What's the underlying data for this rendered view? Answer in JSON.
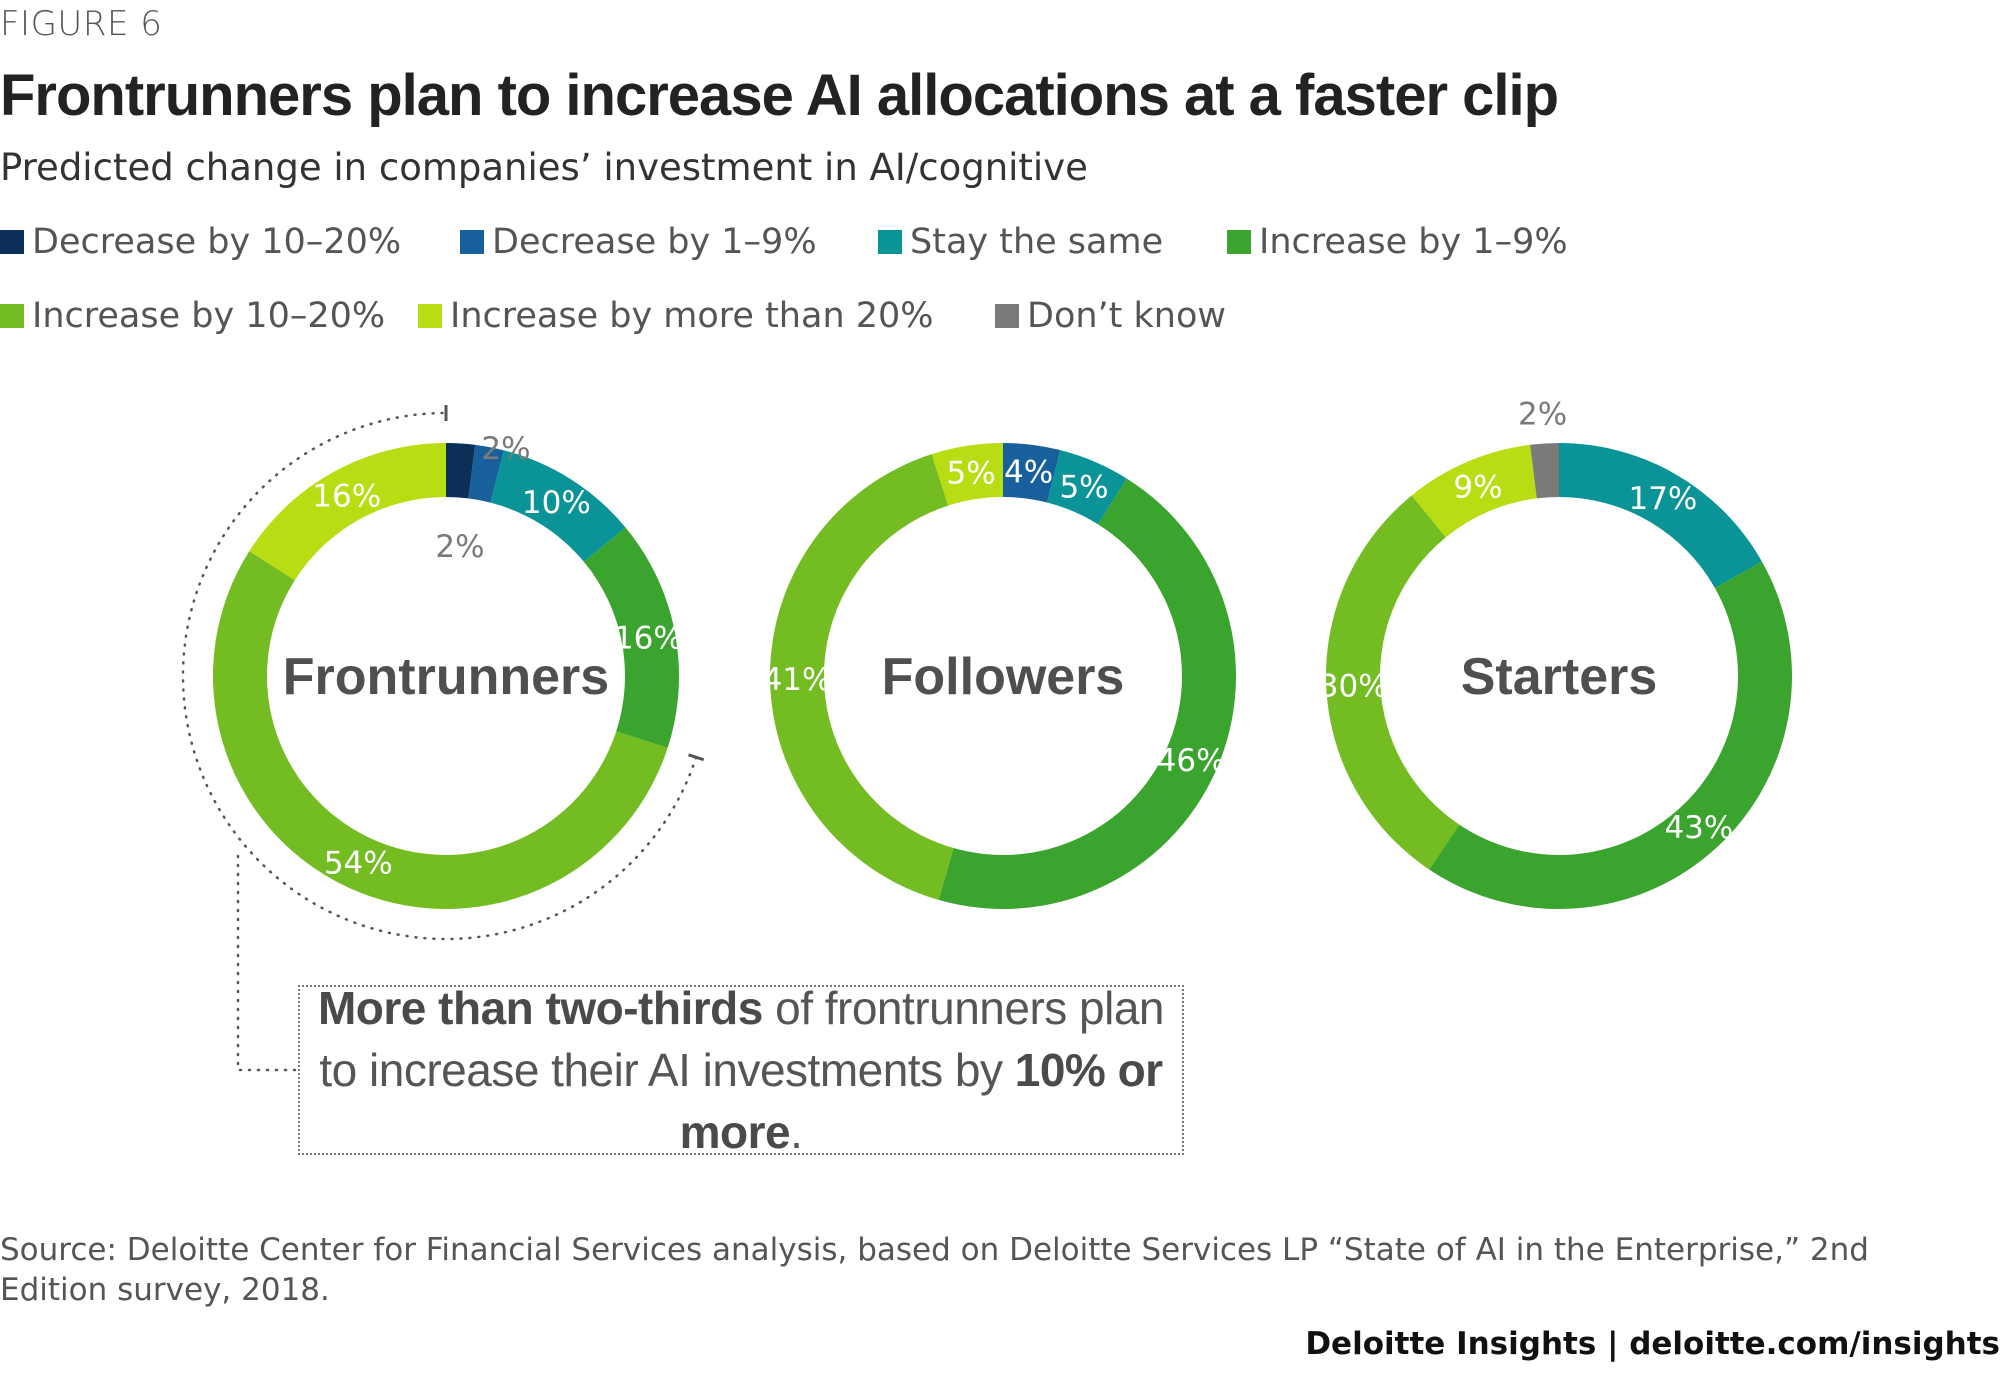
{
  "figure_label": "FIGURE 6",
  "title": "Frontrunners plan to increase AI allocations at a faster clip",
  "subtitle": "Predicted change in companies’ investment in AI/cognitive",
  "legend": [
    {
      "label": "Decrease by 10–20%",
      "color": "#0b2f57"
    },
    {
      "label": "Decrease by 1–9%",
      "color": "#17609b"
    },
    {
      "label": "Stay the same",
      "color": "#0a9497"
    },
    {
      "label": "Increase by 1–9%",
      "color": "#3ba42e"
    },
    {
      "label": "Increase by 10–20%",
      "color": "#73bd22"
    },
    {
      "label": "Increase by more than 20%",
      "color": "#b8dd12"
    },
    {
      "label": "Don’t know",
      "color": "#7a7a7a"
    }
  ],
  "chart_data": {
    "type": "pie",
    "variant": "donut",
    "title": "Frontrunners plan to increase AI allocations at a faster clip",
    "subtitle": "Predicted change in companies’ investment in AI/cognitive",
    "categories": [
      "Decrease by 10–20%",
      "Decrease by 1–9%",
      "Stay the same",
      "Increase by 1–9%",
      "Increase by 10–20%",
      "Increase by more than 20%",
      "Don’t know"
    ],
    "legend_placement": "top",
    "series": [
      {
        "name": "Frontrunners",
        "values": [
          2,
          2,
          10,
          16,
          54,
          16,
          0
        ],
        "labels": [
          "2%",
          "2%",
          "10%",
          "16%",
          "54%",
          "16%",
          ""
        ]
      },
      {
        "name": "Followers",
        "values": [
          0,
          4,
          5,
          46,
          41,
          5,
          0
        ],
        "labels": [
          "",
          "4%",
          "5%",
          "46%",
          "41%",
          "5%",
          ""
        ]
      },
      {
        "name": "Starters",
        "values": [
          0,
          0,
          17,
          43,
          30,
          9,
          2
        ],
        "labels": [
          "",
          "",
          "17%",
          "43%",
          "30%",
          "9%",
          "2%"
        ]
      }
    ]
  },
  "callout": {
    "bold1": "More than two-thirds",
    "text1": " of frontrunners plan to increase their AI investments by ",
    "bold2": "10% or more",
    "text2": "."
  },
  "source": "Source: Deloitte Center for Financial Services analysis, based on Deloitte Services LP “State of AI in the Enterprise,” 2nd Edition survey, 2018.",
  "credit": "Deloitte Insights | deloitte.com/insights"
}
